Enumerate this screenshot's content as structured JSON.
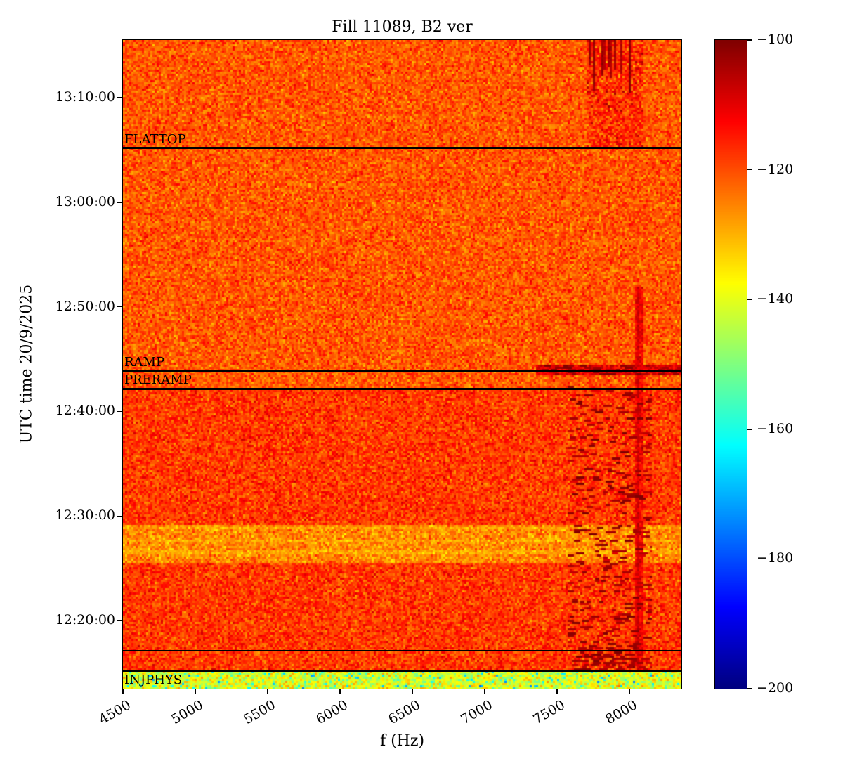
{
  "title": "Fill 11089, B2 ver",
  "chart_data": {
    "type": "heatmap",
    "title": "Fill 11089, B2 ver",
    "xlabel": "f (Hz)",
    "ylabel": "UTC time 20/9/2025",
    "x_range_hz": [
      4500,
      8360
    ],
    "x_ticks": [
      4500,
      5000,
      5500,
      6000,
      6500,
      7000,
      7500,
      8000
    ],
    "time_start": "12:13:30",
    "time_end": "13:15:30",
    "y_ticks": [
      "13:10:00",
      "13:00:00",
      "12:50:00",
      "12:40:00",
      "12:30:00",
      "12:20:00"
    ],
    "colorbar": {
      "min": -200,
      "max": -100,
      "ticks": [
        -100,
        -120,
        -140,
        -160,
        -180,
        -200
      ],
      "colormap": "jet"
    },
    "annotations": [
      {
        "label": "FLATTOP",
        "time": "13:05:10",
        "lw": 3,
        "side": "above"
      },
      {
        "label": "RAMP",
        "time": "12:43:50",
        "lw": 3,
        "side": "above"
      },
      {
        "label": "PRERAMP",
        "time": "12:42:10",
        "lw": 3,
        "side": "above"
      },
      {
        "label": "",
        "time": "12:17:10",
        "lw": 1.5,
        "side": "above"
      },
      {
        "label": "INJPHYS",
        "time": "12:15:10",
        "lw": 2,
        "side": "below"
      }
    ],
    "background_db": {
      "mean": -121,
      "noise_sd": 4
    },
    "seed": 42,
    "regions": [
      {
        "name": "mid-red",
        "type": "fill",
        "t": [
          "12:15:10",
          "12:42:10"
        ],
        "db": -118,
        "sd": 4
      },
      {
        "name": "light-band",
        "type": "fill",
        "t": [
          "12:25:30",
          "12:29:10"
        ],
        "db": -126,
        "sd": 4
      },
      {
        "name": "light-line-1",
        "type": "fill",
        "t": [
          "12:26:20",
          "12:26:40"
        ],
        "db": -129,
        "sd": 3
      },
      {
        "name": "light-line-2",
        "type": "fill",
        "t": [
          "12:27:30",
          "12:27:50"
        ],
        "db": -129,
        "sd": 3
      },
      {
        "name": "light-line-3",
        "type": "fill",
        "t": [
          "12:28:40",
          "12:29:00"
        ],
        "db": -129,
        "sd": 3
      },
      {
        "name": "injection-band",
        "type": "fill",
        "t": [
          "12:13:30",
          "12:15:10"
        ],
        "db": -141,
        "sd": 6,
        "speckle_prob": 0.06,
        "speckle_db": -163,
        "speckle_sd": 6
      },
      {
        "name": "top-right-mottle",
        "type": "fill",
        "f": [
          7700,
          8100
        ],
        "t": [
          "13:05:10",
          "13:15:30"
        ],
        "db": -117,
        "sd": 5
      },
      {
        "name": "vertical-streak",
        "type": "fill",
        "f": [
          8035,
          8100
        ],
        "t": [
          "12:15:10",
          "12:52:00"
        ],
        "db": -112,
        "sd": 3
      },
      {
        "name": "vertical-streak-core",
        "type": "fill",
        "f": [
          8057,
          8075
        ],
        "t": [
          "12:15:10",
          "12:52:00"
        ],
        "db": -108,
        "sd": 2
      },
      {
        "name": "ramp-smear",
        "type": "fill",
        "f": [
          7350,
          8360
        ],
        "t": [
          "12:43:30",
          "12:44:30"
        ],
        "db": -110,
        "sd": 3
      },
      {
        "name": "beam-dashes",
        "type": "dashes",
        "f": [
          7580,
          8150
        ],
        "t": [
          "12:15:10",
          "12:42:30"
        ],
        "prob": 0.07,
        "db": -104,
        "sd": 3
      },
      {
        "name": "bottom-dash-cluster",
        "type": "dashes",
        "f": [
          7650,
          8060
        ],
        "t": [
          "12:15:30",
          "12:17:30"
        ],
        "prob": 0.22,
        "db": -103,
        "sd": 2
      },
      {
        "name": "ramp-dashes",
        "type": "dashes",
        "f": [
          7400,
          8360
        ],
        "t": [
          "12:43:30",
          "12:44:30"
        ],
        "prob": 0.15,
        "db": -103,
        "sd": 2
      },
      {
        "name": "top-stripes",
        "type": "vstripes",
        "f": [
          7660,
          8010
        ],
        "t": [
          "13:09:00",
          "13:15:30"
        ],
        "prob": 0.4,
        "db": -103,
        "sd": 2
      }
    ]
  }
}
